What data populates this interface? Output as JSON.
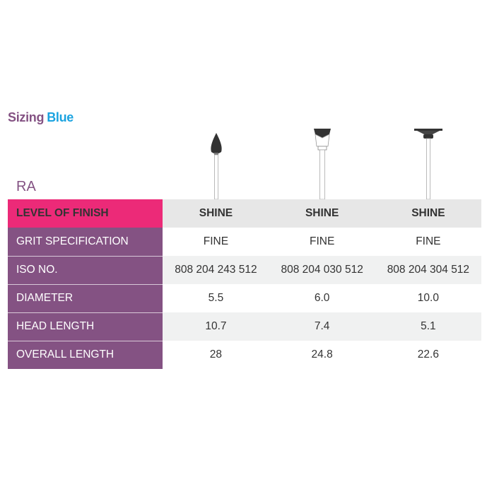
{
  "title": {
    "part1": "Sizing",
    "part2": "Blue"
  },
  "section": "RA",
  "table": {
    "rows": [
      {
        "label": "LEVEL OF FINISH",
        "values": [
          "SHINE",
          "SHINE",
          "SHINE"
        ]
      },
      {
        "label": "GRIT SPECIFICATION",
        "values": [
          "FINE",
          "FINE",
          "FINE"
        ]
      },
      {
        "label": "ISO NO.",
        "values": [
          "808 204 243 512",
          "808 204 030 512",
          "808 204 304 512"
        ]
      },
      {
        "label": "DIAMETER",
        "values": [
          "5.5",
          "6.0",
          "10.0"
        ]
      },
      {
        "label": "HEAD LENGTH",
        "values": [
          "10.7",
          "7.4",
          "5.1"
        ]
      },
      {
        "label": "OVERALL LENGTH",
        "values": [
          "28",
          "24.8",
          "22.6"
        ]
      }
    ]
  },
  "colors": {
    "purple": "#845283",
    "pink": "#ec2a78",
    "blue": "#1ba3e0"
  }
}
